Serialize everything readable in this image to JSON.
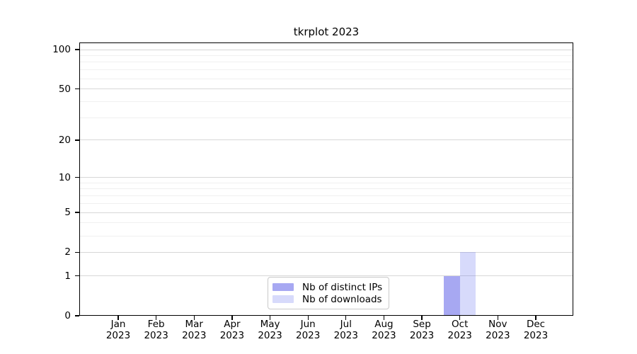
{
  "chart_data": {
    "type": "bar",
    "title": "tkrplot 2023",
    "categories": [
      "Jan",
      "Feb",
      "Mar",
      "Apr",
      "May",
      "Jun",
      "Jul",
      "Aug",
      "Sep",
      "Oct",
      "Nov",
      "Dec"
    ],
    "x_sublabel": "2023",
    "series": [
      {
        "name": "Nb of distinct IPs",
        "color": "rgba(95, 97, 232, 0.55)",
        "values": [
          0,
          0,
          0,
          0,
          0,
          0,
          0,
          0,
          0,
          1,
          0,
          0
        ]
      },
      {
        "name": "Nb of downloads",
        "color": "rgba(99, 112, 240, 0.26)",
        "values": [
          0,
          0,
          0,
          0,
          0,
          0,
          0,
          0,
          0,
          2,
          0,
          0
        ]
      }
    ],
    "y_axis": {
      "scale": "log1p",
      "major_ticks": [
        0,
        1,
        2,
        5,
        10,
        20,
        50,
        100
      ],
      "minor_gridlines": [
        3,
        4,
        6,
        7,
        8,
        9,
        30,
        40,
        60,
        70,
        80,
        90
      ],
      "max_value": 100,
      "ylim": [
        0,
        113
      ]
    },
    "grid": "horizontal-only",
    "legend_position": "bottom-center",
    "colors": {
      "bar_distinct_ips_rendered": "#a9aaf2",
      "bar_downloads_rendered": "#d8dbf9",
      "axis": "#000000",
      "grid_major": "#d7d7d7",
      "grid_minor": "#f0f0f0",
      "legend_border": "#c9c9c9",
      "background": "#ffffff"
    }
  }
}
